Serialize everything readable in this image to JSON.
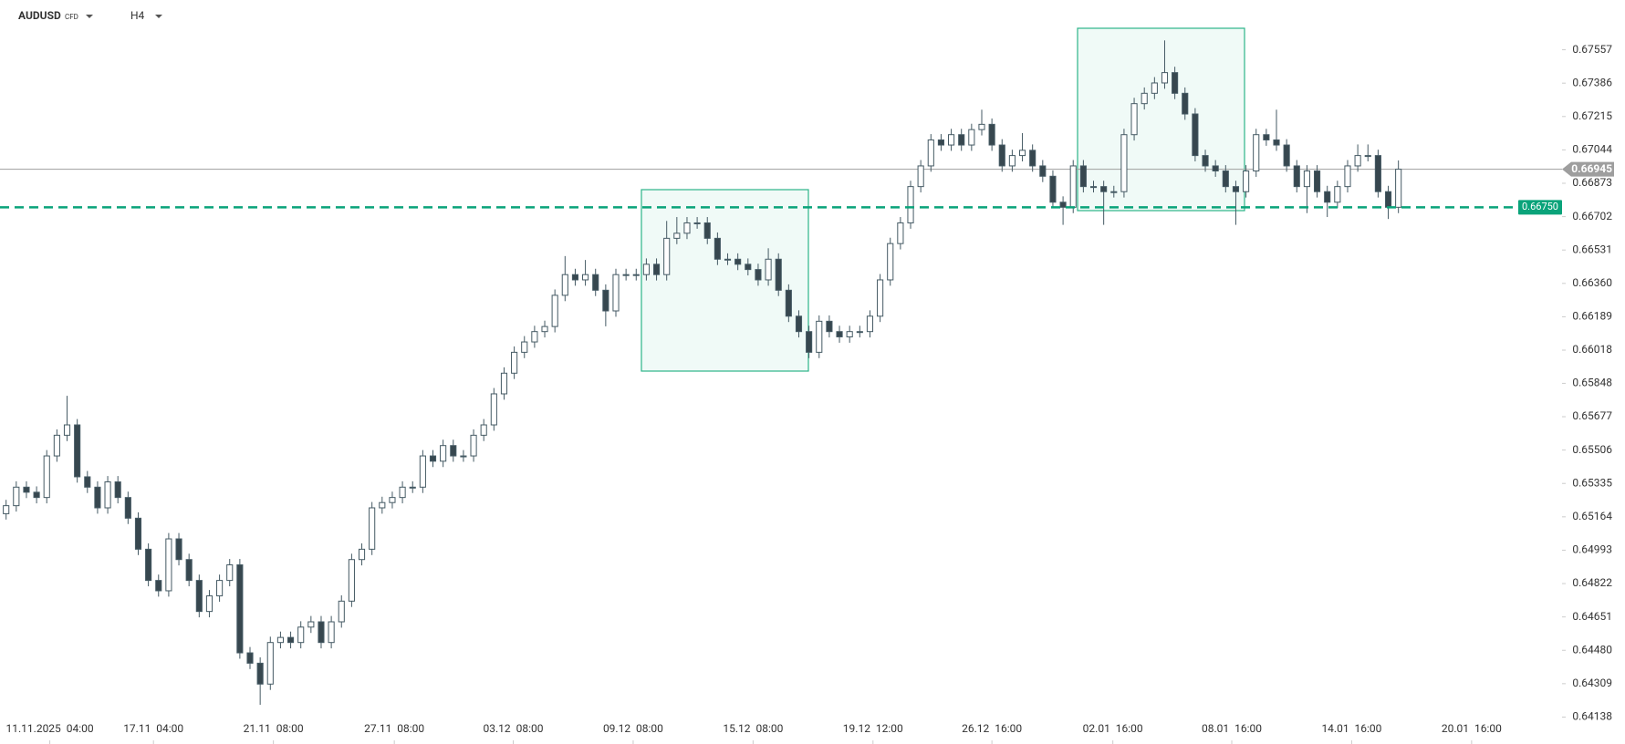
{
  "header": {
    "symbol": "AUDUSD",
    "market": "CFD",
    "timeframe": "H4"
  },
  "chart_data": {
    "type": "candlestick",
    "x": [
      0,
      1,
      2,
      3,
      4,
      5,
      6,
      7,
      8,
      9,
      10,
      11,
      12,
      13,
      14,
      15,
      16,
      17,
      18,
      19,
      20,
      21,
      22,
      23,
      24,
      25,
      26,
      27,
      28,
      29,
      30,
      31,
      32,
      33,
      34,
      35,
      36,
      37,
      38,
      39,
      40,
      41,
      42,
      43,
      44,
      45,
      46,
      47,
      48,
      49,
      50,
      51,
      52,
      53,
      54,
      55,
      56,
      57,
      58,
      59,
      60,
      61,
      62,
      63,
      64,
      65,
      66,
      67,
      68,
      69,
      70,
      71,
      72,
      73,
      74,
      75,
      76,
      77,
      78,
      79,
      80,
      81,
      82,
      83,
      84,
      85,
      86,
      87,
      88,
      89,
      90,
      91,
      92,
      93,
      94,
      95,
      96,
      97,
      98,
      99,
      100,
      101,
      102,
      103,
      104,
      105,
      106,
      107,
      108,
      109,
      110,
      111,
      112,
      113,
      114,
      115,
      116,
      117,
      118,
      119,
      120,
      121,
      122,
      123,
      124,
      125,
      126,
      127,
      128,
      129,
      130,
      131,
      132,
      133,
      134,
      135,
      136,
      137
    ],
    "open": [
      0.6518,
      0.65221,
      0.65316,
      0.6529,
      0.65263,
      0.65476,
      0.65582,
      0.65635,
      0.65369,
      0.65316,
      0.6521,
      0.65343,
      0.65263,
      0.65157,
      0.64998,
      0.64838,
      0.64785,
      0.65051,
      0.64945,
      0.64838,
      0.64679,
      0.64759,
      0.64838,
      0.64918,
      0.64467,
      0.64414,
      0.64307,
      0.6452,
      0.64546,
      0.6452,
      0.64599,
      0.64626,
      0.6452,
      0.64626,
      0.64732,
      0.64945,
      0.64998,
      0.6521,
      0.65237,
      0.65263,
      0.65316,
      0.65316,
      0.65476,
      0.65449,
      0.65529,
      0.65476,
      0.65476,
      0.65582,
      0.65635,
      0.65794,
      0.659,
      0.66007,
      0.6606,
      0.66113,
      0.66139,
      0.66299,
      0.66405,
      0.66378,
      0.66405,
      0.66325,
      0.66219,
      0.66405,
      0.66405,
      0.66405,
      0.66458,
      0.66405,
      0.66591,
      0.66617,
      0.6667,
      0.6667,
      0.66591,
      0.66484,
      0.66484,
      0.66458,
      0.66431,
      0.66378,
      0.66484,
      0.66325,
      0.66192,
      0.66113,
      0.66007,
      0.66166,
      0.66113,
      0.66086,
      0.66113,
      0.66113,
      0.66192,
      0.66378,
      0.66564,
      0.6667,
      0.66856,
      0.66962,
      0.67095,
      0.67069,
      0.67122,
      0.67069,
      0.67148,
      0.67175,
      0.67069,
      0.66962,
      0.67015,
      0.67042,
      0.66962,
      0.66909,
      0.66776,
      0.6675,
      0.66962,
      0.66856,
      0.66856,
      0.6683,
      0.6683,
      0.67122,
      0.67281,
      0.67334,
      0.67387,
      0.6744,
      0.67334,
      0.67228,
      0.67015,
      0.66962,
      0.66936,
      0.66856,
      0.6683,
      0.66936,
      0.67122,
      0.67095,
      0.67069,
      0.66962,
      0.66856,
      0.66936,
      0.6683,
      0.66776,
      0.66856,
      0.66962,
      0.67015,
      0.67015,
      0.6683,
      0.6675
    ],
    "high": [
      0.65251,
      0.65346,
      0.65346,
      0.6532,
      0.65506,
      0.65612,
      0.65784,
      0.65665,
      0.65399,
      0.65346,
      0.65373,
      0.65373,
      0.65293,
      0.65187,
      0.65028,
      0.64868,
      0.65081,
      0.65081,
      0.64975,
      0.64868,
      0.64789,
      0.64868,
      0.64948,
      0.64948,
      0.64497,
      0.64444,
      0.6455,
      0.64576,
      0.64576,
      0.64629,
      0.64656,
      0.64656,
      0.64656,
      0.64762,
      0.64975,
      0.65028,
      0.6524,
      0.65267,
      0.65293,
      0.65346,
      0.65346,
      0.65506,
      0.65506,
      0.65559,
      0.65559,
      0.65506,
      0.65612,
      0.65665,
      0.65824,
      0.6593,
      0.66037,
      0.6609,
      0.66143,
      0.66169,
      0.66329,
      0.665,
      0.66435,
      0.6648,
      0.66435,
      0.66355,
      0.66435,
      0.66435,
      0.66435,
      0.66488,
      0.66488,
      0.6668,
      0.667,
      0.667,
      0.667,
      0.667,
      0.66621,
      0.66514,
      0.66514,
      0.66488,
      0.66461,
      0.6654,
      0.66514,
      0.66355,
      0.66222,
      0.66143,
      0.66196,
      0.66196,
      0.66143,
      0.66143,
      0.66143,
      0.66222,
      0.66408,
      0.66594,
      0.667,
      0.66886,
      0.66992,
      0.67125,
      0.67125,
      0.67152,
      0.67152,
      0.67178,
      0.6725,
      0.67205,
      0.67099,
      0.67045,
      0.6713,
      0.67072,
      0.66992,
      0.66939,
      0.66806,
      0.66992,
      0.66992,
      0.66886,
      0.66886,
      0.6686,
      0.67152,
      0.67311,
      0.67364,
      0.67417,
      0.67605,
      0.6747,
      0.67364,
      0.67258,
      0.67045,
      0.66992,
      0.66966,
      0.66886,
      0.66966,
      0.67152,
      0.67152,
      0.6725,
      0.67099,
      0.66992,
      0.66966,
      0.66966,
      0.6686,
      0.66886,
      0.66992,
      0.67072,
      0.67072,
      0.67045,
      0.6686,
      0.6699
    ],
    "low": [
      0.6515,
      0.65191,
      0.6526,
      0.65233,
      0.65233,
      0.65446,
      0.65552,
      0.65339,
      0.65286,
      0.6518,
      0.6518,
      0.65233,
      0.65127,
      0.64968,
      0.64808,
      0.64755,
      0.64755,
      0.64915,
      0.64808,
      0.64649,
      0.64649,
      0.64729,
      0.64808,
      0.64437,
      0.64384,
      0.64201,
      0.64277,
      0.6449,
      0.6449,
      0.6449,
      0.64569,
      0.6449,
      0.6449,
      0.64596,
      0.64702,
      0.64915,
      0.64968,
      0.6518,
      0.65207,
      0.65233,
      0.65286,
      0.65286,
      0.65419,
      0.65419,
      0.65446,
      0.65446,
      0.65446,
      0.65552,
      0.65605,
      0.65764,
      0.6587,
      0.65977,
      0.6603,
      0.66083,
      0.66109,
      0.66269,
      0.66348,
      0.66348,
      0.66295,
      0.6614,
      0.66189,
      0.66375,
      0.66375,
      0.66375,
      0.66375,
      0.66375,
      0.66561,
      0.66587,
      0.6664,
      0.66561,
      0.66454,
      0.66454,
      0.66428,
      0.66401,
      0.66348,
      0.66348,
      0.66295,
      0.66162,
      0.66083,
      0.65977,
      0.65977,
      0.66083,
      0.66056,
      0.66056,
      0.66083,
      0.66083,
      0.66162,
      0.66348,
      0.66534,
      0.6664,
      0.66826,
      0.66932,
      0.67039,
      0.67039,
      0.67039,
      0.67039,
      0.67118,
      0.67039,
      0.66932,
      0.66932,
      0.66985,
      0.66932,
      0.66879,
      0.66746,
      0.6666,
      0.6672,
      0.66826,
      0.66826,
      0.6666,
      0.668,
      0.668,
      0.67092,
      0.67251,
      0.67304,
      0.67357,
      0.67304,
      0.67198,
      0.66985,
      0.66932,
      0.66906,
      0.66826,
      0.6666,
      0.668,
      0.66906,
      0.67065,
      0.67039,
      0.66932,
      0.66826,
      0.6672,
      0.668,
      0.667,
      0.66746,
      0.66826,
      0.66932,
      0.66985,
      0.668,
      0.6669,
      0.6672
    ],
    "close": [
      0.65221,
      0.65316,
      0.6529,
      0.65263,
      0.65476,
      0.65582,
      0.65635,
      0.65369,
      0.65316,
      0.6521,
      0.65343,
      0.65263,
      0.65157,
      0.64998,
      0.64838,
      0.64785,
      0.65051,
      0.64945,
      0.64838,
      0.64679,
      0.64759,
      0.64838,
      0.64918,
      0.64467,
      0.64414,
      0.64307,
      0.6452,
      0.64546,
      0.6452,
      0.64599,
      0.64626,
      0.6452,
      0.64626,
      0.64732,
      0.64945,
      0.64998,
      0.6521,
      0.65237,
      0.65263,
      0.65316,
      0.65316,
      0.65476,
      0.65449,
      0.65529,
      0.65476,
      0.65476,
      0.65582,
      0.65635,
      0.65794,
      0.659,
      0.66007,
      0.6606,
      0.66113,
      0.66139,
      0.66299,
      0.66405,
      0.66378,
      0.66405,
      0.66325,
      0.66219,
      0.66405,
      0.66405,
      0.66405,
      0.66458,
      0.66405,
      0.66591,
      0.66617,
      0.6667,
      0.6667,
      0.66591,
      0.66484,
      0.66484,
      0.66458,
      0.66431,
      0.66378,
      0.66484,
      0.66325,
      0.66192,
      0.66113,
      0.66007,
      0.66166,
      0.66113,
      0.66086,
      0.66113,
      0.66113,
      0.66192,
      0.66378,
      0.66564,
      0.6667,
      0.66856,
      0.66962,
      0.67095,
      0.67069,
      0.67122,
      0.67069,
      0.67148,
      0.67175,
      0.67069,
      0.66962,
      0.67015,
      0.67042,
      0.66962,
      0.66909,
      0.66776,
      0.6675,
      0.66962,
      0.66856,
      0.66856,
      0.6683,
      0.6683,
      0.67122,
      0.67281,
      0.67334,
      0.67387,
      0.6744,
      0.67334,
      0.67228,
      0.67015,
      0.66962,
      0.66936,
      0.66856,
      0.6683,
      0.66936,
      0.67122,
      0.67095,
      0.67069,
      0.66962,
      0.66856,
      0.66936,
      0.6683,
      0.66776,
      0.66856,
      0.66962,
      0.67015,
      0.67015,
      0.6683,
      0.6675,
      0.66945
    ],
    "up_color": "#ffffff",
    "down_color": "#37474f",
    "wick_color": "#455a64",
    "xlim": [
      -0.6,
      153.1
    ],
    "xticks": [
      {
        "value": 4.3,
        "label": "11.11.2025  04:00"
      },
      {
        "value": 14.5,
        "label": "17.11  04:00"
      },
      {
        "value": 26.3,
        "label": "21.11  08:00"
      },
      {
        "value": 38.2,
        "label": "27.11  08:00"
      },
      {
        "value": 49.9,
        "label": "03.12  08:00"
      },
      {
        "value": 61.7,
        "label": "09.12  08:00"
      },
      {
        "value": 73.5,
        "label": "15.12  08:00"
      },
      {
        "value": 85.3,
        "label": "19.12  12:00"
      },
      {
        "value": 97.0,
        "label": "26.12  16:00"
      },
      {
        "value": 108.9,
        "label": "02.01  16:00"
      },
      {
        "value": 120.6,
        "label": "08.01  16:00"
      },
      {
        "value": 132.4,
        "label": "14.01  16:00"
      },
      {
        "value": 144.2,
        "label": "20.01  16:00"
      }
    ],
    "ylim": [
      0.64,
      0.67812
    ],
    "yticks": [
      0.67557,
      0.67386,
      0.67215,
      0.67044,
      0.66873,
      0.66702,
      0.66531,
      {
        "value": 0.6636,
        "label": "0.66360"
      },
      0.66189,
      0.66018,
      0.65848,
      0.65677,
      0.65506,
      0.65335,
      0.65164,
      0.64993,
      0.64822,
      0.64651,
      {
        "value": 0.6448,
        "label": "0.64480"
      },
      0.64309,
      0.64138
    ],
    "current_price": 0.66945,
    "current_price_color": "#9e9e9e",
    "level": {
      "value": 0.6675,
      "label": "0.66750"
    },
    "level_color": "#0aa37a"
  }
}
